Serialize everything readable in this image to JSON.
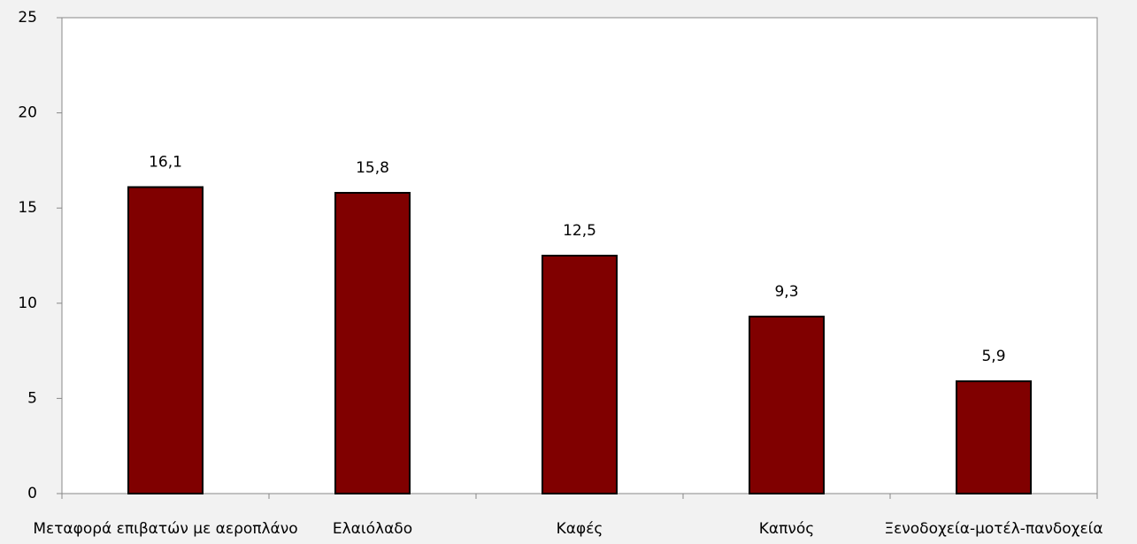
{
  "chart_data": {
    "type": "bar",
    "categories": [
      "Μεταφορά επιβατών με αεροπλάνο",
      "Ελαιόλαδο",
      "Καφές",
      "Καπνός",
      "Ξενοδοχεία-μοτέλ-πανδοχεία"
    ],
    "values": [
      16.1,
      15.8,
      12.5,
      9.3,
      5.9
    ],
    "value_labels": [
      "16,1",
      "15,8",
      "12,5",
      "9,3",
      "5,9"
    ],
    "color": "#800000",
    "ylim": [
      0,
      25
    ],
    "yticks": [
      0,
      5,
      10,
      15,
      20,
      25
    ],
    "grid": false
  }
}
